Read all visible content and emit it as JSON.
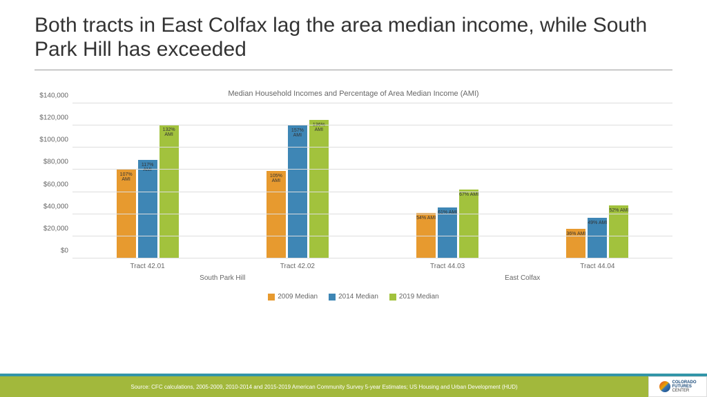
{
  "title": "Both tracts in East Colfax lag the area median income, while South Park Hill has exceeded",
  "chart": {
    "title": "Median Household Incomes and Percentage of Area Median Income (AMI)",
    "type": "bar",
    "y_max": 140000,
    "y_step": 20000,
    "y_ticks": [
      "$0",
      "$20,000",
      "$40,000",
      "$60,000",
      "$80,000",
      "$100,000",
      "$120,000",
      "$140,000"
    ],
    "grid_color": "#dddddd",
    "series": [
      {
        "name": "2009 Median",
        "color": "#e79a2f"
      },
      {
        "name": "2014 Median",
        "color": "#3e86b5"
      },
      {
        "name": "2019 Median",
        "color": "#a2c23d"
      }
    ],
    "groups": [
      {
        "label": "Tract 42.01",
        "super": "South Park Hill",
        "values": [
          80000,
          89000,
          121000
        ],
        "labels": [
          "107% AMI",
          "117% AMI",
          "132% AMI"
        ]
      },
      {
        "label": "Tract 42.02",
        "super": "South Park Hill",
        "values": [
          79000,
          120000,
          125000
        ],
        "labels": [
          "105% AMI",
          "157% AMI",
          "136% AMI"
        ]
      },
      {
        "label": "Tract 44.03",
        "super": "East Colfax",
        "values": [
          41000,
          46000,
          62000
        ],
        "labels": [
          "54% AMI",
          "61% AMI",
          "67% AMI"
        ]
      },
      {
        "label": "Tract 44.04",
        "super": "East Colfax",
        "values": [
          27000,
          37000,
          48000
        ],
        "labels": [
          "36% AMI",
          "49% AMI",
          "52% AMI"
        ]
      }
    ]
  },
  "footer": {
    "source": "Source: CFC calculations, 2005-2009, 2010-2014 and 2015-2019 American Community Survey 5-year Estimates; US Housing and Urban Development (HUD)",
    "bar_color": "#a2b83c",
    "stripe_color": "#3295a8",
    "logo_line1": "COLORADO",
    "logo_line2": "FUTURES",
    "logo_line3": "CENTER"
  }
}
